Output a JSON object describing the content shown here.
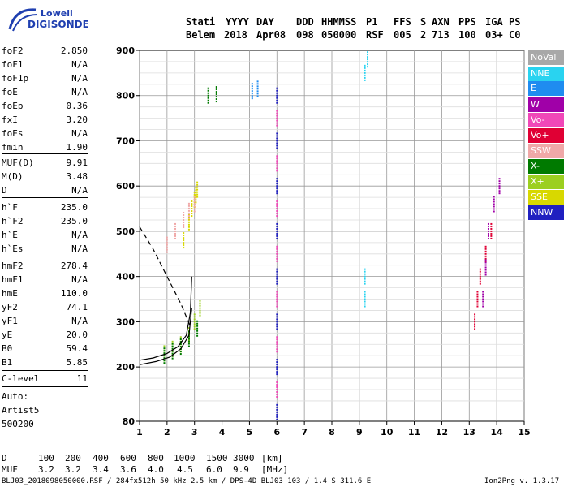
{
  "logo": {
    "line1": "Lowell",
    "line2": "DIGISONDE"
  },
  "header": {
    "labels": [
      "Stati",
      "YYYY",
      "DAY",
      "DDD",
      "HHMMSS",
      "P1",
      "FFS",
      "S",
      "AXN",
      "PPS",
      "IGA",
      "PS"
    ],
    "values": [
      "Belem",
      "2018",
      "Apr08",
      "098",
      "050000",
      "RSF",
      "005",
      "2",
      "713",
      "100",
      "03+",
      "C0"
    ]
  },
  "params": [
    {
      "k": "foF2",
      "v": "2.850"
    },
    {
      "k": "foF1",
      "v": "N/A"
    },
    {
      "k": "foF1p",
      "v": "N/A"
    },
    {
      "k": "foE",
      "v": "N/A"
    },
    {
      "k": "foEp",
      "v": "0.36"
    },
    {
      "k": "fxI",
      "v": "3.20"
    },
    {
      "k": "foEs",
      "v": "N/A"
    },
    {
      "k": "fmin",
      "v": "1.90"
    },
    {
      "k": "MUF(D)",
      "v": "9.91"
    },
    {
      "k": "M(D)",
      "v": "3.48"
    },
    {
      "k": "D",
      "v": "N/A"
    },
    {
      "k": "h`F",
      "v": "235.0"
    },
    {
      "k": "h`F2",
      "v": "235.0"
    },
    {
      "k": "h`E",
      "v": "N/A"
    },
    {
      "k": "h`Es",
      "v": "N/A"
    },
    {
      "k": "hmF2",
      "v": "278.4"
    },
    {
      "k": "hmF1",
      "v": "N/A"
    },
    {
      "k": "hmE",
      "v": "110.0"
    },
    {
      "k": "yF2",
      "v": "74.1"
    },
    {
      "k": "yF1",
      "v": "N/A"
    },
    {
      "k": "yE",
      "v": "20.0"
    },
    {
      "k": "B0",
      "v": "59.4"
    },
    {
      "k": "B1",
      "v": "5.85"
    },
    {
      "k": "C-level",
      "v": "11"
    }
  ],
  "auto": {
    "line1": "Auto:",
    "line2": "Artist5",
    "line3": "500200"
  },
  "legend": [
    {
      "label": "NoVal",
      "color": "#a8a8a8"
    },
    {
      "label": "NNE",
      "color": "#29d3f0"
    },
    {
      "label": "E",
      "color": "#1f8cf0"
    },
    {
      "label": "W",
      "color": "#a000a8"
    },
    {
      "label": "Vo-",
      "color": "#f048b8"
    },
    {
      "label": "Vo+",
      "color": "#e00034"
    },
    {
      "label": "SSW",
      "color": "#f0a8a8"
    },
    {
      "label": "X-",
      "color": "#007a00"
    },
    {
      "label": "X+",
      "color": "#9ccf20"
    },
    {
      "label": "SSE",
      "color": "#d8d800"
    },
    {
      "label": "NNW",
      "color": "#2020c0"
    }
  ],
  "footer": {
    "d_label": "D",
    "d_values": [
      "100",
      "200",
      "400",
      "600",
      "800",
      "1000",
      "1500",
      "3000"
    ],
    "d_unit": "[km]",
    "muf_label": "MUF",
    "muf_values": [
      "3.2",
      "3.2",
      "3.4",
      "3.6",
      "4.0",
      "4.5",
      "6.0",
      "9.9"
    ],
    "muf_unit": "[MHz]",
    "file_line": "BLJ03_2018098050000.RSF / 284fx512h 50 kHz 2.5 km / DPS-4D BLJ03 103 / 1.4 S 311.6 E",
    "version": "Ion2Png v. 1.3.17"
  },
  "chart_data": {
    "type": "scatter",
    "xlim": [
      1,
      15
    ],
    "ylim": [
      80,
      900
    ],
    "x_ticks": [
      1,
      2,
      3,
      4,
      5,
      6,
      7,
      8,
      9,
      10,
      11,
      12,
      13,
      14,
      15
    ],
    "y_ticks": [
      80,
      200,
      300,
      400,
      500,
      600,
      700,
      800,
      900
    ],
    "grid": true,
    "traces": [
      {
        "name": "X+",
        "x": [
          1.9,
          2.2,
          2.5,
          2.8,
          3.0,
          3.2
        ],
        "y": [
          230,
          240,
          250,
          270,
          300,
          330
        ]
      },
      {
        "name": "X-",
        "x": [
          1.9,
          2.2,
          2.5,
          2.8,
          3.1
        ],
        "y": [
          225,
          235,
          245,
          262,
          285
        ]
      },
      {
        "name": "X-",
        "x": [
          3.5,
          3.8
        ],
        "y": [
          800,
          803
        ]
      },
      {
        "name": "SSE",
        "x": [
          2.6,
          2.8,
          2.9,
          3.0,
          3.05,
          3.1
        ],
        "y": [
          480,
          520,
          550,
          570,
          580,
          592
        ]
      },
      {
        "name": "SSW",
        "x": [
          2.0,
          2.3,
          2.6,
          2.8,
          3.0
        ],
        "y": [
          470,
          500,
          525,
          545,
          560
        ]
      },
      {
        "name": "NNW",
        "x": [
          6.0,
          6.0,
          6.0,
          6.0,
          6.0,
          6.0,
          6.0,
          6.0
        ],
        "y": [
          100,
          200,
          300,
          400,
          500,
          600,
          700,
          800
        ]
      },
      {
        "name": "Vo-",
        "x": [
          6.0,
          6.0,
          6.0,
          6.0,
          6.0,
          6.0,
          6.0
        ],
        "y": [
          150,
          250,
          350,
          450,
          550,
          650,
          750
        ]
      },
      {
        "name": "Vo+",
        "x": [
          13.2,
          13.3,
          13.4,
          13.6,
          13.8
        ],
        "y": [
          300,
          350,
          400,
          450,
          500
        ]
      },
      {
        "name": "W",
        "x": [
          13.5,
          13.6,
          13.7,
          13.9,
          14.1
        ],
        "y": [
          350,
          420,
          500,
          560,
          600
        ]
      },
      {
        "name": "NNE",
        "x": [
          9.2,
          9.2,
          9.2,
          9.3
        ],
        "y": [
          350,
          400,
          850,
          880
        ]
      },
      {
        "name": "E",
        "x": [
          5.1,
          5.3
        ],
        "y": [
          810,
          815
        ]
      }
    ],
    "profile_curve": {
      "x": [
        1.0,
        1.5,
        2.0,
        2.4,
        2.7,
        2.85,
        2.9
      ],
      "y": [
        215,
        220,
        230,
        245,
        270,
        320,
        400
      ]
    },
    "profile_curve_2": {
      "x": [
        1.0,
        1.6,
        2.1,
        2.5,
        2.8,
        2.9
      ],
      "y": [
        205,
        212,
        222,
        240,
        270,
        330
      ]
    },
    "dashed_curve": {
      "x": [
        1.0,
        1.5,
        2.0,
        2.5,
        2.85
      ],
      "y": [
        510,
        460,
        400,
        340,
        290
      ]
    }
  }
}
